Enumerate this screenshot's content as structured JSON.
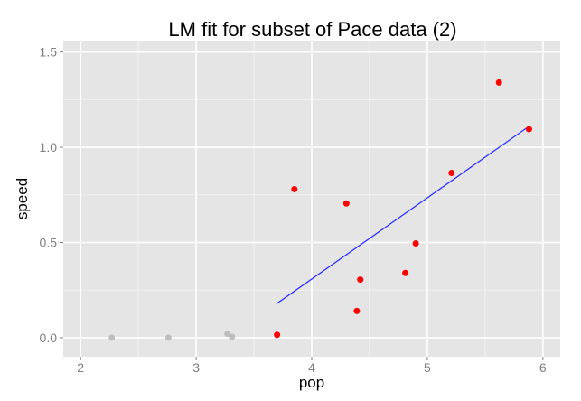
{
  "chart_data": {
    "type": "scatter",
    "title": "LM fit for subset of Pace data (2)",
    "xlabel": "pop",
    "ylabel": "speed",
    "xlim": [
      1.85,
      6.15
    ],
    "ylim": [
      -0.1,
      1.56
    ],
    "x_ticks": [
      2,
      3,
      4,
      5,
      6
    ],
    "x_tick_labels": [
      "2",
      "3",
      "4",
      "5",
      "6"
    ],
    "y_ticks": [
      0.0,
      0.5,
      1.0,
      1.5
    ],
    "y_tick_labels": [
      "0.0",
      "0.5",
      "1.0",
      "1.5"
    ],
    "grid": true,
    "series": [
      {
        "role": "excluded",
        "color": "#bdbdbd",
        "points": [
          {
            "x": 2.27,
            "y": 0.0
          },
          {
            "x": 2.76,
            "y": 0.0
          },
          {
            "x": 3.27,
            "y": 0.02
          },
          {
            "x": 3.31,
            "y": 0.005
          }
        ]
      },
      {
        "role": "fitted",
        "color": "#ff0000",
        "points": [
          {
            "x": 3.7,
            "y": 0.015
          },
          {
            "x": 3.85,
            "y": 0.78
          },
          {
            "x": 4.3,
            "y": 0.705
          },
          {
            "x": 4.39,
            "y": 0.14
          },
          {
            "x": 4.42,
            "y": 0.305
          },
          {
            "x": 4.81,
            "y": 0.34
          },
          {
            "x": 4.9,
            "y": 0.495
          },
          {
            "x": 5.21,
            "y": 0.865
          },
          {
            "x": 5.62,
            "y": 1.34
          },
          {
            "x": 5.88,
            "y": 1.095
          }
        ]
      }
    ],
    "fit_line": {
      "color": "#3333ff",
      "points": [
        {
          "x": 3.7,
          "y": 0.18
        },
        {
          "x": 5.88,
          "y": 1.11
        }
      ]
    },
    "colors": {
      "panel_background": "#e5e5e5",
      "grid_major": "#ffffff",
      "grid_minor": "#f2f2f2",
      "tick_text": "#7f7f7f",
      "tick_mark": "#7f7f7f"
    }
  }
}
